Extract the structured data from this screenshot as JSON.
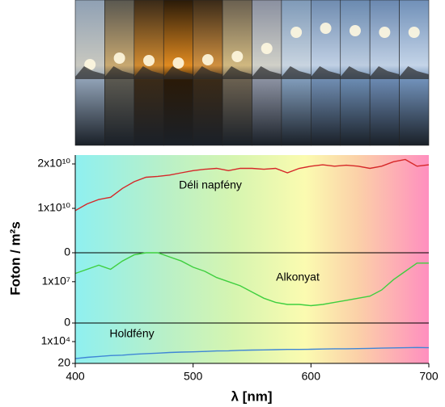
{
  "chart_data": {
    "type": "line",
    "xlabel": "λ [nm]",
    "ylabel": "Foton / m²s",
    "x": [
      400,
      410,
      420,
      430,
      440,
      450,
      460,
      470,
      480,
      490,
      500,
      510,
      520,
      530,
      540,
      550,
      560,
      570,
      580,
      590,
      600,
      610,
      620,
      630,
      640,
      650,
      660,
      670,
      680,
      690,
      700
    ],
    "xlim": [
      400,
      700
    ],
    "xticks": [
      400,
      500,
      600,
      700
    ],
    "panels": [
      {
        "name": "Déli napfény",
        "color": "#d62728",
        "ylim": [
          0,
          22000000000
        ],
        "yticks": [
          {
            "value": 20000000000,
            "label": "2x10¹⁰"
          },
          {
            "value": 10000000000,
            "label": "1x10¹⁰"
          },
          0
        ],
        "values": [
          9500000000,
          11000000000,
          12000000000,
          12500000000,
          14500000000,
          16000000000,
          17000000000,
          17200000000,
          17500000000,
          18000000000,
          18500000000,
          18800000000,
          19000000000,
          18500000000,
          19000000000,
          19000000000,
          18800000000,
          19000000000,
          18000000000,
          19000000000,
          19500000000,
          19800000000,
          19500000000,
          19700000000,
          19500000000,
          19000000000,
          19500000000,
          20500000000,
          21000000000,
          19500000000,
          19800000000
        ]
      },
      {
        "name": "Alkonyat",
        "color": "#3fcf3f",
        "ylim": [
          0,
          17000000
        ],
        "yticks": [
          {
            "value": 10000000,
            "label": "1x10⁷"
          },
          0
        ],
        "values": [
          12000000,
          13000000,
          14000000,
          13000000,
          15000000,
          16500000,
          17000000,
          17000000,
          16000000,
          15000000,
          13500000,
          12500000,
          11000000,
          10000000,
          9000000,
          7500000,
          6000000,
          5000000,
          4500000,
          4500000,
          4200000,
          4500000,
          5000000,
          5500000,
          6000000,
          6500000,
          8000000,
          10500000,
          12500000,
          14500000,
          14500000
        ]
      },
      {
        "name": "Holdfény",
        "color": "#3f86d6",
        "ylim": [
          20,
          18500
        ],
        "yticks": [
          {
            "value": 10000,
            "label": "1x10⁴"
          },
          20
        ],
        "values": [
          2200,
          2800,
          3200,
          3600,
          3800,
          4200,
          4500,
          4700,
          5000,
          5200,
          5300,
          5500,
          5700,
          5800,
          6000,
          6100,
          6200,
          6300,
          6400,
          6400,
          6500,
          6600,
          6700,
          6700,
          6800,
          6900,
          7000,
          7100,
          7200,
          7300,
          7200
        ]
      }
    ]
  }
}
